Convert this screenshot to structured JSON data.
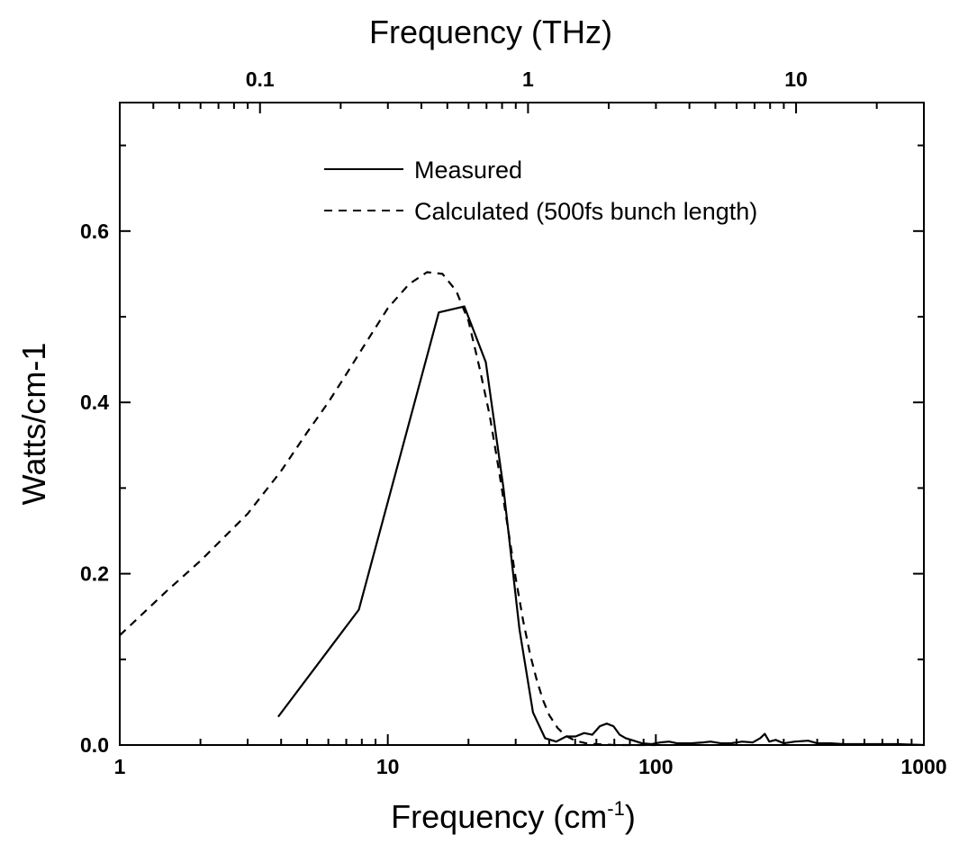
{
  "chart_data": {
    "type": "line",
    "xlabel": "Frequency (cm",
    "xlabel_sup": "-1",
    "xlabel_close": ")",
    "top_xlabel": "Frequency (THz)",
    "ylabel": "Watts/cm-1",
    "x_scale": "log",
    "xlim": [
      1,
      1000
    ],
    "ylim": [
      0.0,
      0.75
    ],
    "x_ticks": [
      {
        "value": 1,
        "label": "1"
      },
      {
        "value": 10,
        "label": "10"
      },
      {
        "value": 100,
        "label": "100"
      },
      {
        "value": 1000,
        "label": "1000"
      }
    ],
    "y_ticks": [
      {
        "value": 0.0,
        "label": "0.0"
      },
      {
        "value": 0.2,
        "label": "0.2"
      },
      {
        "value": 0.4,
        "label": "0.4"
      },
      {
        "value": 0.6,
        "label": "0.6"
      }
    ],
    "top_ticks": [
      {
        "value": 0.1,
        "label": "0.1"
      },
      {
        "value": 1,
        "label": "1"
      },
      {
        "value": 10,
        "label": "10"
      }
    ],
    "top_axis_factor": 33.356,
    "grid": false,
    "legend_position": "top-center",
    "series": [
      {
        "name": "Measured",
        "style": "solid",
        "color": "#000000",
        "x": [
          3.9,
          7.8,
          15.5,
          19.3,
          23.2,
          27.0,
          31.0,
          34.8,
          38.6,
          42.5,
          46.3,
          50.2,
          54.0,
          57.9,
          61.8,
          65.6,
          69.5,
          73.3,
          77.2,
          81.0,
          88.8,
          96.5,
          104,
          112,
          120,
          135,
          150,
          160,
          175,
          190,
          210,
          230,
          245,
          255,
          265,
          280,
          300,
          330,
          370,
          400,
          450,
          500,
          600,
          700,
          800,
          1000
        ],
        "y": [
          0.033,
          0.158,
          0.505,
          0.512,
          0.447,
          0.3,
          0.135,
          0.038,
          0.008,
          0.004,
          0.01,
          0.01,
          0.014,
          0.012,
          0.022,
          0.025,
          0.022,
          0.012,
          0.008,
          0.006,
          0.002,
          0.001,
          0.003,
          0.004,
          0.002,
          0.002,
          0.003,
          0.004,
          0.002,
          0.002,
          0.004,
          0.003,
          0.008,
          0.013,
          0.004,
          0.006,
          0.002,
          0.004,
          0.005,
          0.002,
          0.002,
          0.001,
          0.001,
          0.001,
          0.001,
          0.0
        ]
      },
      {
        "name": "Calculated (500fs bunch length)",
        "style": "dashed",
        "color": "#000000",
        "x": [
          1.0,
          1.5,
          2.0,
          3.0,
          4.0,
          5.0,
          6.0,
          7.0,
          8.0,
          10.0,
          12.0,
          14.0,
          16.0,
          18.0,
          20.0,
          22.0,
          24.0,
          26.0,
          28.0,
          30.0,
          32.0,
          34.0,
          36.0,
          38.0,
          40.0,
          43.0,
          46.0,
          50.0,
          55.0,
          60.0,
          70.0,
          80.0,
          100.0
        ],
        "y": [
          0.128,
          0.18,
          0.215,
          0.27,
          0.32,
          0.365,
          0.4,
          0.433,
          0.462,
          0.51,
          0.538,
          0.552,
          0.55,
          0.53,
          0.495,
          0.44,
          0.385,
          0.32,
          0.255,
          0.195,
          0.145,
          0.105,
          0.075,
          0.052,
          0.035,
          0.02,
          0.011,
          0.005,
          0.002,
          0.001,
          0.0,
          0.0,
          0.0
        ]
      }
    ]
  }
}
